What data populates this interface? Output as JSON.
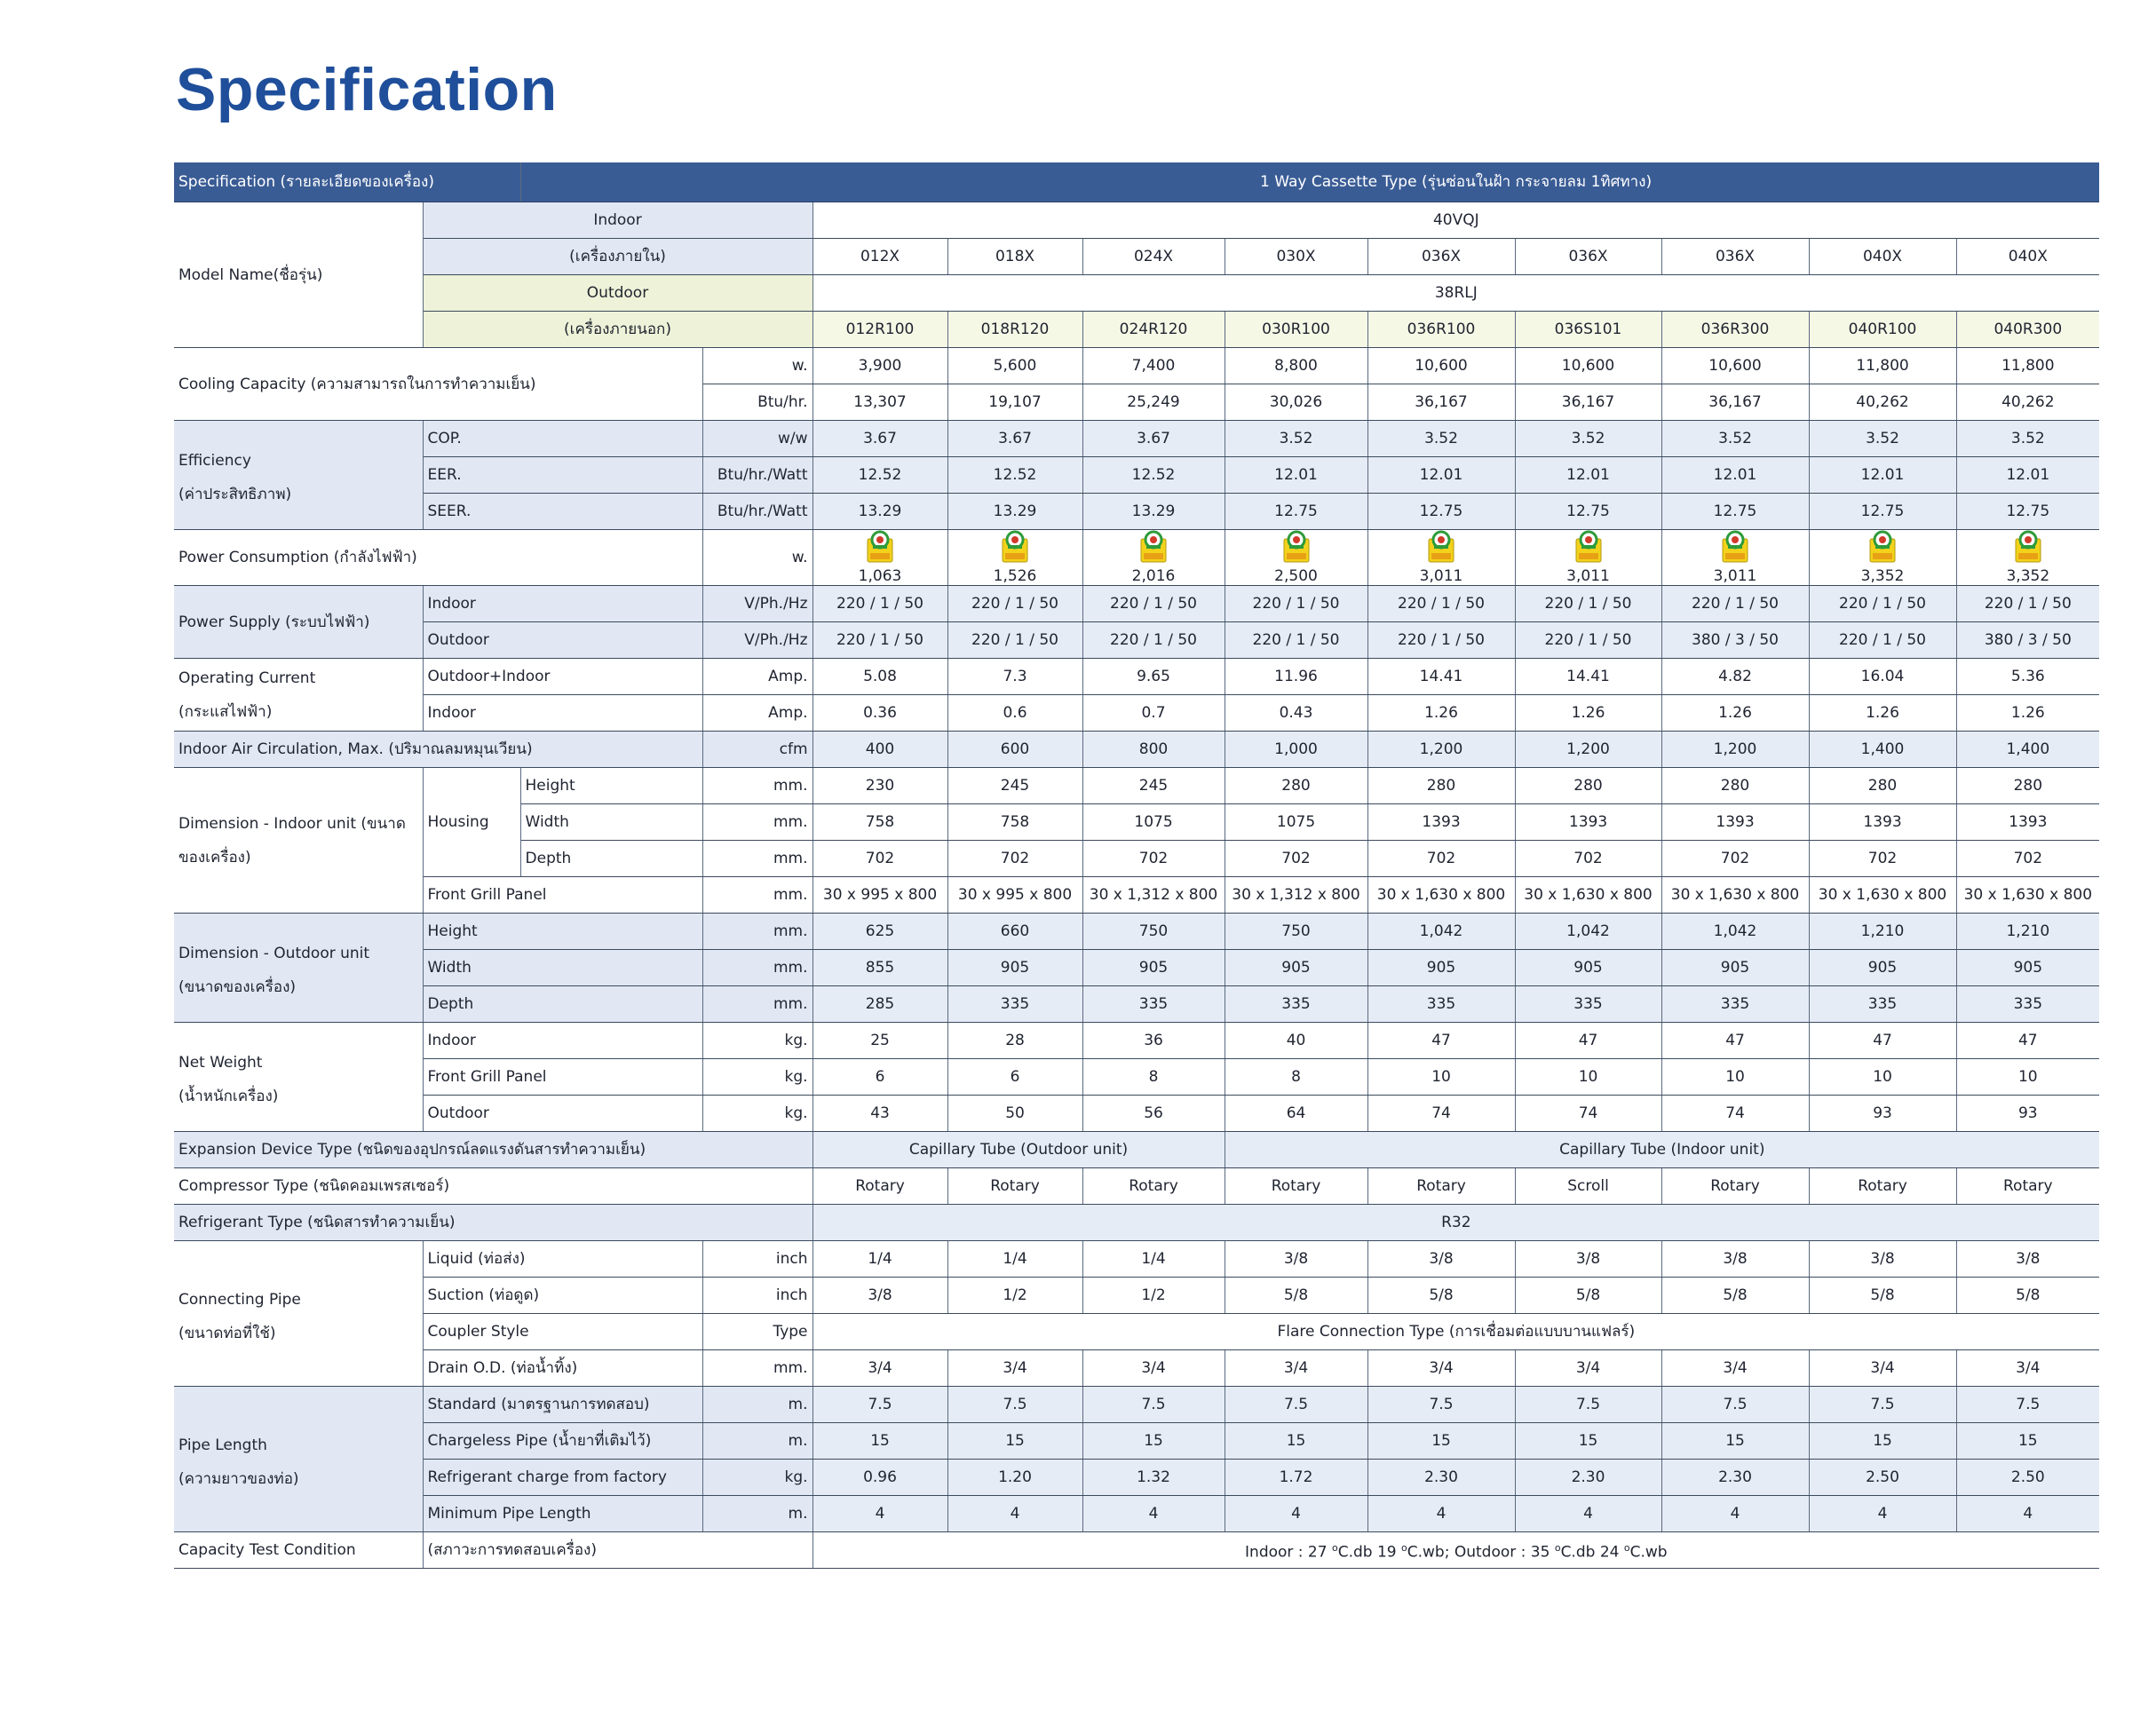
{
  "title": "Specification",
  "header": {
    "spec_label": "Specification (รายละเอียดของเครื่อง)",
    "type_label": "1 Way Cassette Type (รุ่นซ่อนในฝ้า กระจายลม 1ทิศทาง)"
  },
  "model": {
    "label": "Model Name(ชื่อรุ่น)",
    "indoor_label": "Indoor",
    "indoor_sub": "(เครื่องภายใน)",
    "indoor_series": "40VQJ",
    "indoor_models": [
      "012X",
      "018X",
      "024X",
      "030X",
      "036X",
      "036X",
      "036X",
      "040X",
      "040X"
    ],
    "outdoor_label": "Outdoor",
    "outdoor_sub": "(เครื่องภายนอก)",
    "outdoor_series": "38RLJ",
    "outdoor_models": [
      "012R100",
      "018R120",
      "024R120",
      "030R100",
      "036R100",
      "036S101",
      "036R300",
      "040R100",
      "040R300"
    ]
  },
  "cooling": {
    "label": "Cooling Capacity (ความสามารถในการทำความเย็น)",
    "unit_w": "w.",
    "w": [
      "3,900",
      "5,600",
      "7,400",
      "8,800",
      "10,600",
      "10,600",
      "10,600",
      "11,800",
      "11,800"
    ],
    "unit_btu": "Btu/hr.",
    "btu": [
      "13,307",
      "19,107",
      "25,249",
      "30,026",
      "36,167",
      "36,167",
      "36,167",
      "40,262",
      "40,262"
    ]
  },
  "efficiency": {
    "label1": "Efficiency",
    "label2": "(ค่าประสิทธิภาพ)",
    "cop_label": "COP.",
    "cop_unit": "w/w",
    "cop": [
      "3.67",
      "3.67",
      "3.67",
      "3.52",
      "3.52",
      "3.52",
      "3.52",
      "3.52",
      "3.52"
    ],
    "eer_label": "EER.",
    "eer_unit": "Btu/hr./Watt",
    "eer": [
      "12.52",
      "12.52",
      "12.52",
      "12.01",
      "12.01",
      "12.01",
      "12.01",
      "12.01",
      "12.01"
    ],
    "seer_label": "SEER.",
    "seer_unit": "Btu/hr./Watt",
    "seer": [
      "13.29",
      "13.29",
      "13.29",
      "12.75",
      "12.75",
      "12.75",
      "12.75",
      "12.75",
      "12.75"
    ]
  },
  "power_consumption": {
    "label": "Power Consumption (กำลังไฟฟ้า)",
    "unit": "w.",
    "icon": "energy-label-no5-icon",
    "values": [
      "1,063",
      "1,526",
      "2,016",
      "2,500",
      "3,011",
      "3,011",
      "3,011",
      "3,352",
      "3,352"
    ]
  },
  "power_supply": {
    "label": "Power Supply (ระบบไฟฟ้า)",
    "indoor_label": "Indoor",
    "indoor_unit": "V/Ph./Hz",
    "indoor": [
      "220 / 1 / 50",
      "220 / 1 / 50",
      "220 / 1 / 50",
      "220 / 1 / 50",
      "220 / 1 / 50",
      "220 / 1 / 50",
      "220 / 1 / 50",
      "220 / 1 / 50",
      "220 / 1 / 50"
    ],
    "outdoor_label": "Outdoor",
    "outdoor_unit": "V/Ph./Hz",
    "outdoor": [
      "220 / 1 / 50",
      "220 / 1 / 50",
      "220 / 1 / 50",
      "220 / 1 / 50",
      "220 / 1 / 50",
      "220 / 1 / 50",
      "380  / 3 / 50",
      "220 / 1 / 50",
      "380  / 3 / 50"
    ]
  },
  "operating_current": {
    "label1": "Operating Current",
    "label2": "(กระแสไฟฟ้า)",
    "oi_label": "Outdoor+Indoor",
    "oi_unit": "Amp.",
    "oi": [
      "5.08",
      "7.3",
      "9.65",
      "11.96",
      "14.41",
      "14.41",
      "4.82",
      "16.04",
      "5.36"
    ],
    "in_label": "Indoor",
    "in_unit": "Amp.",
    "in": [
      "0.36",
      "0.6",
      "0.7",
      "0.43",
      "1.26",
      "1.26",
      "1.26",
      "1.26",
      "1.26"
    ]
  },
  "air_circulation": {
    "label": "Indoor Air Circulation, Max. (ปริมาณลมหมุนเวียน)",
    "unit": "cfm",
    "values": [
      "400",
      "600",
      "800",
      "1,000",
      "1,200",
      "1,200",
      "1,200",
      "1,400",
      "1,400"
    ]
  },
  "dim_indoor": {
    "label1": "Dimension - Indoor unit (ขนาด",
    "label2": "ของเครื่อง)",
    "housing": "Housing",
    "height_label": "Height",
    "height_unit": "mm.",
    "height": [
      "230",
      "245",
      "245",
      "280",
      "280",
      "280",
      "280",
      "280",
      "280"
    ],
    "width_label": "Width",
    "width_unit": "mm.",
    "width": [
      "758",
      "758",
      "1075",
      "1075",
      "1393",
      "1393",
      "1393",
      "1393",
      "1393"
    ],
    "depth_label": "Depth",
    "depth_unit": "mm.",
    "depth": [
      "702",
      "702",
      "702",
      "702",
      "702",
      "702",
      "702",
      "702",
      "702"
    ],
    "panel_label": "Front Grill Panel",
    "panel_unit": "mm.",
    "panel": [
      "30 x 995 x 800",
      "30 x 995 x 800",
      "30 x 1,312 x 800",
      "30 x 1,312 x 800",
      "30 x 1,630 x 800",
      "30 x 1,630 x 800",
      "30 x 1,630 x 800",
      "30 x 1,630 x 800",
      "30 x 1,630 x 800"
    ]
  },
  "dim_outdoor": {
    "label1": "Dimension - Outdoor unit",
    "label2": "(ขนาดของเครื่อง)",
    "height_label": "Height",
    "height_unit": "mm.",
    "height": [
      "625",
      "660",
      "750",
      "750",
      "1,042",
      "1,042",
      "1,042",
      "1,210",
      "1,210"
    ],
    "width_label": "Width",
    "width_unit": "mm.",
    "width": [
      "855",
      "905",
      "905",
      "905",
      "905",
      "905",
      "905",
      "905",
      "905"
    ],
    "depth_label": "Depth",
    "depth_unit": "mm.",
    "depth": [
      "285",
      "335",
      "335",
      "335",
      "335",
      "335",
      "335",
      "335",
      "335"
    ]
  },
  "net_weight": {
    "label1": "Net Weight",
    "label2": "(น้ำหนักเครื่อง)",
    "indoor_label": "Indoor",
    "indoor_unit": "kg.",
    "indoor": [
      "25",
      "28",
      "36",
      "40",
      "47",
      "47",
      "47",
      "47",
      "47"
    ],
    "panel_label": "Front Grill Panel",
    "panel_unit": "kg.",
    "panel": [
      "6",
      "6",
      "8",
      "8",
      "10",
      "10",
      "10",
      "10",
      "10"
    ],
    "outdoor_label": "Outdoor",
    "outdoor_unit": "kg.",
    "outdoor": [
      "43",
      "50",
      "56",
      "64",
      "74",
      "74",
      "74",
      "93",
      "93"
    ]
  },
  "expansion": {
    "label": "Expansion Device Type (ชนิดของอุปกรณ์ลดแรงดันสารทำความเย็น)",
    "outdoor_value": "Capillary Tube (Outdoor unit)",
    "indoor_value": "Capillary Tube (Indoor unit)"
  },
  "compressor": {
    "label": "Compressor Type (ชนิดคอมเพรสเซอร์)",
    "values": [
      "Rotary",
      "Rotary",
      "Rotary",
      "Rotary",
      "Rotary",
      "Scroll",
      "Rotary",
      "Rotary",
      "Rotary"
    ]
  },
  "refrigerant": {
    "label": "Refrigerant Type (ชนิดสารทำความเย็น)",
    "value": "R32"
  },
  "pipe": {
    "label1": "Connecting Pipe",
    "label2": "(ขนาดท่อที่ใช้)",
    "liquid_label": "Liquid (ท่อส่ง)",
    "liquid_unit": "inch",
    "liquid": [
      "1/4",
      "1/4",
      "1/4",
      "3/8",
      "3/8",
      "3/8",
      "3/8",
      "3/8",
      "3/8"
    ],
    "suction_label": "Suction (ท่อดูด)",
    "suction_unit": "inch",
    "suction": [
      "3/8",
      "1/2",
      "1/2",
      "5/8",
      "5/8",
      "5/8",
      "5/8",
      "5/8",
      "5/8"
    ],
    "coupler_label": "Coupler Style",
    "coupler_unit": "Type",
    "coupler_value": "Flare Connection Type (การเชื่อมต่อแบบบานแฟลร์)",
    "drain_label": "Drain O.D. (ท่อน้ำทิ้ง)",
    "drain_unit": "mm.",
    "drain": [
      "3/4",
      "3/4",
      "3/4",
      "3/4",
      "3/4",
      "3/4",
      "3/4",
      "3/4",
      "3/4"
    ]
  },
  "pipe_length": {
    "label1": "Pipe Length",
    "label2": "(ความยาวของท่อ)",
    "std_label": "Standard (มาตรฐานการทดสอบ)",
    "std_unit": "m.",
    "std": [
      "7.5",
      "7.5",
      "7.5",
      "7.5",
      "7.5",
      "7.5",
      "7.5",
      "7.5",
      "7.5"
    ],
    "cg_label": "Chargeless Pipe (น้ำยาที่เติมไว้)",
    "cg_unit": "m.",
    "cg": [
      "15",
      "15",
      "15",
      "15",
      "15",
      "15",
      "15",
      "15",
      "15"
    ],
    "rf_label": "Refrigerant charge from factory",
    "rf_unit": "kg.",
    "rf": [
      "0.96",
      "1.20",
      "1.32",
      "1.72",
      "2.30",
      "2.30",
      "2.30",
      "2.50",
      "2.50"
    ],
    "min_label": "Minimum Pipe Length",
    "min_unit": "m.",
    "min": [
      "4",
      "4",
      "4",
      "4",
      "4",
      "4",
      "4",
      "4",
      "4"
    ]
  },
  "test_condition": {
    "label": "Capacity Test Condition",
    "sub": "(สภาวะการทดสอบเครื่อง)",
    "p1": "Indoor : 27 ",
    "p2": "C.db 19 ",
    "p3": "C.wb; Outdoor : 35 ",
    "p4": "C.db 24 ",
    "p5": "C.wb",
    "deg": "o"
  }
}
